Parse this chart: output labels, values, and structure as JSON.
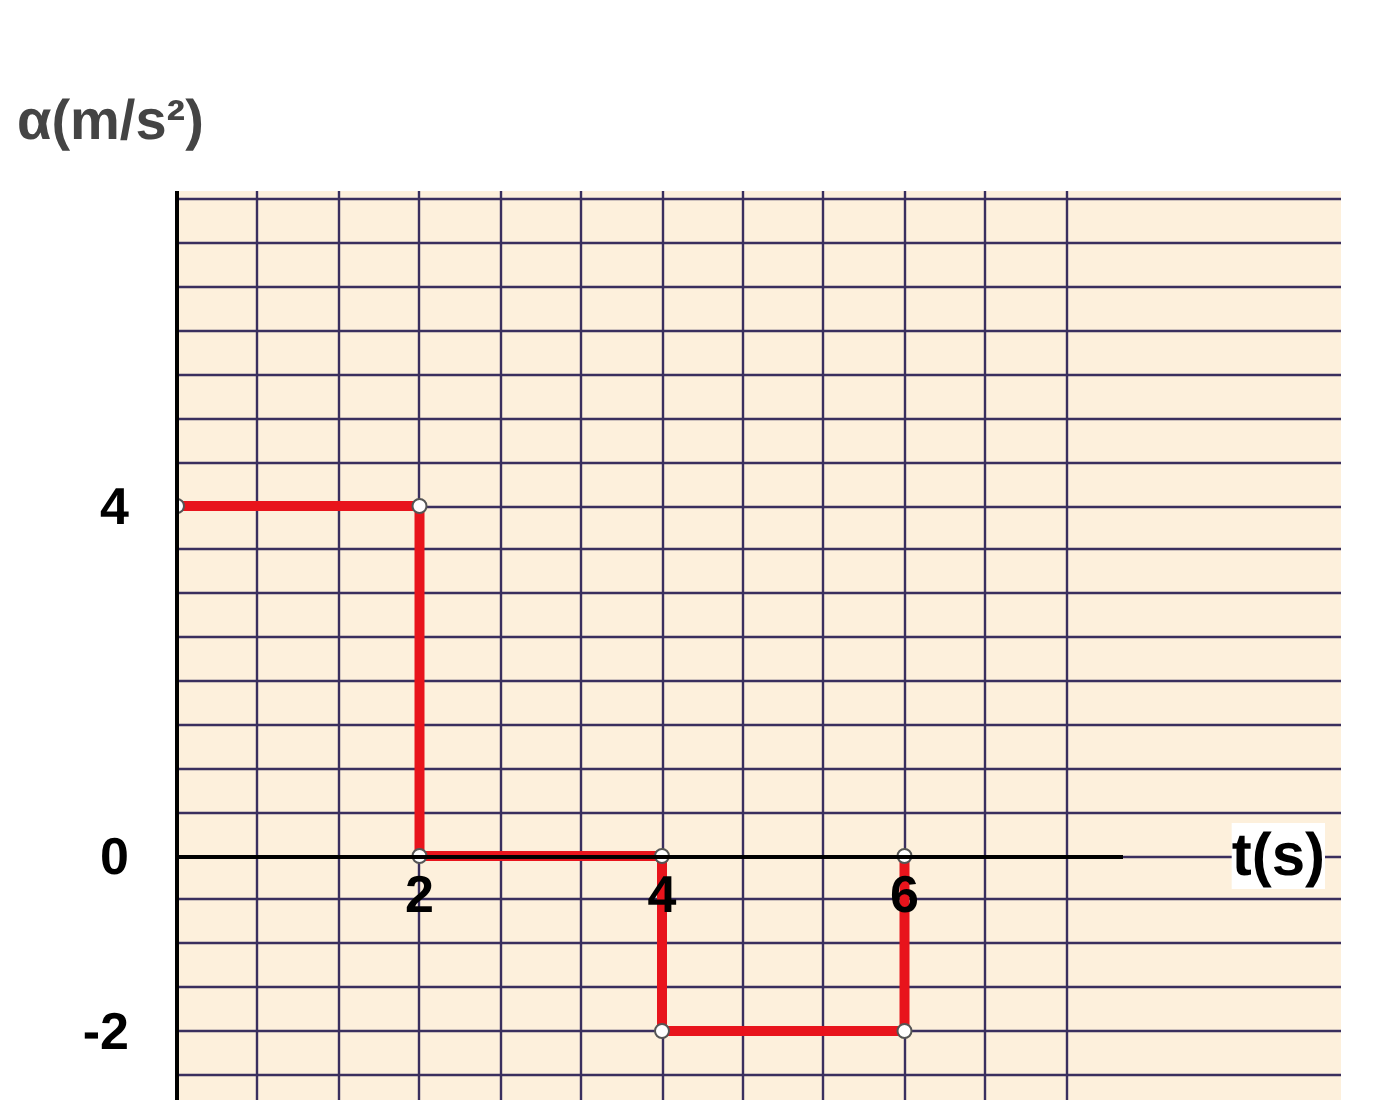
{
  "chart_data": {
    "type": "step",
    "xlabel": "t(s)",
    "ylabel": "α(m/s²)",
    "x": [
      0,
      2,
      2,
      4,
      4,
      6,
      6
    ],
    "series": [
      {
        "color": "#e8141c",
        "values": [
          4,
          4,
          0,
          0,
          -2,
          -2,
          0
        ]
      }
    ],
    "xlim": [
      0,
      9.6
    ],
    "ylim": [
      -2.8,
      7.6
    ],
    "xticks": [
      {
        "value": 0.667,
        "label": null
      },
      {
        "value": 1.333,
        "label": null
      },
      2,
      {
        "value": 2.667,
        "label": null
      },
      {
        "value": 3.333,
        "label": null
      },
      4,
      {
        "value": 4.667,
        "label": null
      },
      {
        "value": 5.333,
        "label": null
      },
      6,
      {
        "value": 6.667,
        "label": null
      },
      {
        "value": 7.333,
        "label": null
      }
    ],
    "yticks": [
      {
        "value": -2.5,
        "label": null
      },
      -2,
      {
        "value": -1.5,
        "label": null
      },
      {
        "value": -1,
        "label": null
      },
      {
        "value": -0.5,
        "label": null
      },
      0,
      {
        "value": 0.5,
        "label": null
      },
      {
        "value": 1,
        "label": null
      },
      {
        "value": 1.5,
        "label": null
      },
      {
        "value": 2,
        "label": null
      },
      {
        "value": 2.5,
        "label": null
      },
      {
        "value": 3,
        "label": null
      },
      {
        "value": 3.5,
        "label": null
      },
      4,
      {
        "value": 4.5,
        "label": null
      },
      {
        "value": 5,
        "label": null
      },
      {
        "value": 5.5,
        "label": null
      },
      {
        "value": 6,
        "label": null
      },
      {
        "value": 6.5,
        "label": null
      },
      {
        "value": 7,
        "label": null
      },
      {
        "value": 7.5,
        "label": null
      }
    ],
    "grid": true,
    "marker": "circle",
    "line_style": "solid"
  }
}
